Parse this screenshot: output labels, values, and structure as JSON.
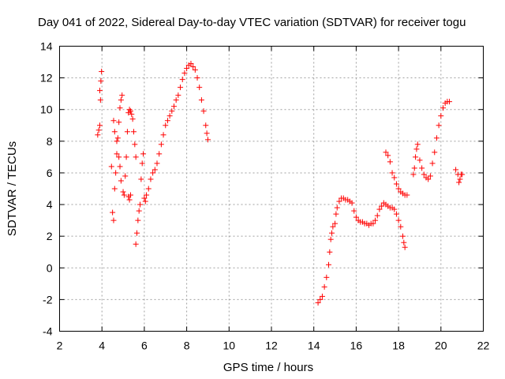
{
  "chart_data": {
    "type": "scatter",
    "title": "Day 041 of 2022, Sidereal Day-to-day VTEC variation (SDTVAR) for receiver togu",
    "xlabel": "GPS time / hours",
    "ylabel": "SDTVAR / TECUs",
    "xlim": [
      2,
      22
    ],
    "ylim": [
      -4,
      14
    ],
    "xticks": [
      2,
      4,
      6,
      8,
      10,
      12,
      14,
      16,
      18,
      20,
      22
    ],
    "yticks": [
      -4,
      -2,
      0,
      2,
      4,
      6,
      8,
      10,
      12,
      14
    ],
    "grid": true,
    "marker": "+",
    "color": "#ff0000",
    "series": [
      {
        "name": "receiver togu",
        "points": [
          [
            3.8,
            8.4
          ],
          [
            3.85,
            8.7
          ],
          [
            3.9,
            9.0
          ],
          [
            3.95,
            11.8
          ],
          [
            3.98,
            12.4
          ],
          [
            3.9,
            11.2
          ],
          [
            3.93,
            10.6
          ],
          [
            4.45,
            6.4
          ],
          [
            4.5,
            3.5
          ],
          [
            4.55,
            3.0
          ],
          [
            4.6,
            5.0
          ],
          [
            4.65,
            6.0
          ],
          [
            4.7,
            7.2
          ],
          [
            4.75,
            8.2
          ],
          [
            4.8,
            9.2
          ],
          [
            4.85,
            10.1
          ],
          [
            4.9,
            10.6
          ],
          [
            4.95,
            10.9
          ],
          [
            4.55,
            9.3
          ],
          [
            4.6,
            8.6
          ],
          [
            4.7,
            8.0
          ],
          [
            4.8,
            7.0
          ],
          [
            4.85,
            6.4
          ],
          [
            4.9,
            5.5
          ],
          [
            5.0,
            4.8
          ],
          [
            5.05,
            4.6
          ],
          [
            5.1,
            5.8
          ],
          [
            5.15,
            7.0
          ],
          [
            5.2,
            8.6
          ],
          [
            5.25,
            9.8
          ],
          [
            5.3,
            10.0
          ],
          [
            5.35,
            9.9
          ],
          [
            5.4,
            9.7
          ],
          [
            5.45,
            9.4
          ],
          [
            5.5,
            8.6
          ],
          [
            5.55,
            7.8
          ],
          [
            5.6,
            7.0
          ],
          [
            5.25,
            4.5
          ],
          [
            5.3,
            4.3
          ],
          [
            5.35,
            4.6
          ],
          [
            5.6,
            1.5
          ],
          [
            5.65,
            2.2
          ],
          [
            5.7,
            3.0
          ],
          [
            5.75,
            3.6
          ],
          [
            5.8,
            4.0
          ],
          [
            5.85,
            5.6
          ],
          [
            5.9,
            6.6
          ],
          [
            5.95,
            7.2
          ],
          [
            6.0,
            4.4
          ],
          [
            6.05,
            4.2
          ],
          [
            6.1,
            4.6
          ],
          [
            6.2,
            5.0
          ],
          [
            6.3,
            5.6
          ],
          [
            6.4,
            6.0
          ],
          [
            6.5,
            6.2
          ],
          [
            6.6,
            6.6
          ],
          [
            6.7,
            7.2
          ],
          [
            6.8,
            7.8
          ],
          [
            6.9,
            8.4
          ],
          [
            7.0,
            9.0
          ],
          [
            7.1,
            9.3
          ],
          [
            7.2,
            9.6
          ],
          [
            7.3,
            9.9
          ],
          [
            7.4,
            10.2
          ],
          [
            7.5,
            10.6
          ],
          [
            7.6,
            10.9
          ],
          [
            7.7,
            11.4
          ],
          [
            7.8,
            11.9
          ],
          [
            7.9,
            12.3
          ],
          [
            8.0,
            12.6
          ],
          [
            8.1,
            12.8
          ],
          [
            8.2,
            12.9
          ],
          [
            8.3,
            12.7
          ],
          [
            8.4,
            12.5
          ],
          [
            8.5,
            12.0
          ],
          [
            8.6,
            11.4
          ],
          [
            8.7,
            10.6
          ],
          [
            8.8,
            9.9
          ],
          [
            8.9,
            9.0
          ],
          [
            8.95,
            8.5
          ],
          [
            9.0,
            8.1
          ],
          [
            14.2,
            -2.2
          ],
          [
            14.3,
            -2.0
          ],
          [
            14.4,
            -1.8
          ],
          [
            14.5,
            -1.2
          ],
          [
            14.6,
            -0.6
          ],
          [
            14.7,
            0.2
          ],
          [
            14.75,
            1.0
          ],
          [
            14.8,
            1.8
          ],
          [
            14.85,
            2.2
          ],
          [
            14.9,
            2.6
          ],
          [
            15.0,
            2.8
          ],
          [
            15.05,
            3.4
          ],
          [
            15.1,
            3.8
          ],
          [
            15.2,
            4.2
          ],
          [
            15.3,
            4.4
          ],
          [
            15.4,
            4.4
          ],
          [
            15.5,
            4.3
          ],
          [
            15.6,
            4.3
          ],
          [
            15.7,
            4.2
          ],
          [
            15.8,
            4.1
          ],
          [
            15.9,
            3.6
          ],
          [
            16.0,
            3.2
          ],
          [
            16.1,
            3.0
          ],
          [
            16.2,
            2.9
          ],
          [
            16.3,
            2.9
          ],
          [
            16.4,
            2.8
          ],
          [
            16.5,
            2.8
          ],
          [
            16.6,
            2.7
          ],
          [
            16.7,
            2.8
          ],
          [
            16.8,
            2.8
          ],
          [
            16.9,
            3.0
          ],
          [
            17.0,
            3.3
          ],
          [
            17.1,
            3.7
          ],
          [
            17.2,
            3.9
          ],
          [
            17.3,
            4.1
          ],
          [
            17.4,
            4.0
          ],
          [
            17.5,
            3.9
          ],
          [
            17.6,
            3.8
          ],
          [
            17.7,
            3.8
          ],
          [
            17.8,
            3.7
          ],
          [
            17.9,
            3.4
          ],
          [
            18.0,
            3.0
          ],
          [
            18.1,
            2.6
          ],
          [
            18.2,
            2.0
          ],
          [
            18.25,
            1.6
          ],
          [
            18.3,
            1.3
          ],
          [
            17.4,
            7.3
          ],
          [
            17.5,
            7.1
          ],
          [
            17.6,
            6.7
          ],
          [
            17.7,
            6.0
          ],
          [
            17.8,
            5.7
          ],
          [
            17.9,
            5.3
          ],
          [
            18.0,
            5.0
          ],
          [
            18.1,
            4.8
          ],
          [
            18.2,
            4.7
          ],
          [
            18.3,
            4.6
          ],
          [
            18.4,
            4.6
          ],
          [
            18.7,
            5.9
          ],
          [
            18.75,
            6.3
          ],
          [
            18.8,
            7.0
          ],
          [
            18.85,
            7.5
          ],
          [
            18.9,
            7.8
          ],
          [
            19.0,
            6.8
          ],
          [
            19.1,
            6.3
          ],
          [
            19.2,
            5.9
          ],
          [
            19.3,
            5.7
          ],
          [
            19.4,
            5.6
          ],
          [
            19.5,
            5.8
          ],
          [
            19.6,
            6.6
          ],
          [
            19.7,
            7.3
          ],
          [
            19.8,
            8.2
          ],
          [
            19.9,
            9.0
          ],
          [
            20.0,
            9.6
          ],
          [
            20.1,
            10.1
          ],
          [
            20.2,
            10.4
          ],
          [
            20.3,
            10.5
          ],
          [
            20.4,
            10.5
          ],
          [
            20.7,
            6.2
          ],
          [
            20.8,
            5.9
          ],
          [
            20.85,
            5.4
          ],
          [
            20.9,
            5.6
          ],
          [
            20.95,
            5.9
          ],
          [
            21.0,
            5.9
          ]
        ]
      }
    ]
  }
}
